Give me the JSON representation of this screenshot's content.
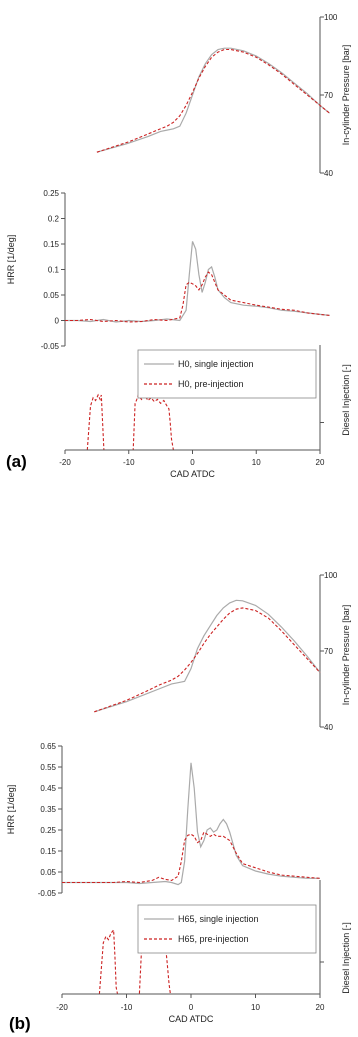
{
  "chart_data": [
    {
      "type": "line",
      "panel_label": "(a)",
      "xlabel": "CAD ATDC",
      "xlim": [
        -20,
        20
      ],
      "xticks": [
        "-20",
        "-10",
        "0",
        "10",
        "20"
      ],
      "pressure": {
        "ylabel": "In-cylinder Pressure [bar]",
        "ylim": [
          40,
          100
        ],
        "yticks": [
          "40",
          "70",
          "100"
        ],
        "series": [
          {
            "name": "H0, single injection",
            "color": "#aaaaaa",
            "dash": "solid",
            "x": [
              -15,
              -10,
              -7,
              -5,
              -4,
              -3,
              -2,
              -1,
              0,
              1,
              2,
              3,
              4,
              5,
              6,
              8,
              10,
              12,
              14,
              16,
              18,
              20,
              21.5
            ],
            "y": [
              48,
              51.5,
              54,
              56,
              56.5,
              57,
              58,
              63,
              70,
              77,
              82,
              85.5,
              87.5,
              88,
              88,
              87,
              85,
              82,
              78.5,
              74.5,
              70.5,
              66,
              63
            ]
          },
          {
            "name": "H0, pre-injection",
            "color": "#cc2222",
            "dash": "dashed",
            "x": [
              -15,
              -10,
              -7,
              -5,
              -4,
              -3,
              -2,
              -1,
              0,
              1,
              2,
              3,
              4,
              5,
              6,
              8,
              10,
              12,
              14,
              16,
              18,
              20,
              21.5
            ],
            "y": [
              48,
              52,
              55,
              57,
              58,
              59.5,
              62,
              66,
              71,
              76.5,
              81,
              84.5,
              86.5,
              87.5,
              87.5,
              86.5,
              84.5,
              81.5,
              78,
              74,
              70,
              66,
              63
            ]
          }
        ]
      },
      "hrr": {
        "ylabel": "HRR [1/deg]",
        "ylim": [
          -0.05,
          0.25
        ],
        "yticks": [
          "-0.05",
          "0",
          "0.05",
          "0.1",
          "0.15",
          "0.2",
          "0.25"
        ],
        "series": [
          {
            "name": "H0, single injection",
            "color": "#aaaaaa",
            "dash": "solid",
            "x": [
              -20,
              -18,
              -16,
              -14,
              -12,
              -10,
              -8,
              -6,
              -4,
              -2,
              -1,
              -0.5,
              0,
              0.5,
              1,
              1.5,
              2,
              2.5,
              3,
              3.5,
              4,
              5,
              6,
              8,
              10,
              12,
              14,
              16,
              18,
              20,
              21.5
            ],
            "y": [
              0,
              0,
              -0.002,
              0.002,
              -0.003,
              0,
              -0.002,
              0,
              0.003,
              0,
              0.02,
              0.09,
              0.155,
              0.14,
              0.09,
              0.055,
              0.075,
              0.1,
              0.105,
              0.085,
              0.06,
              0.045,
              0.035,
              0.03,
              0.028,
              0.025,
              0.02,
              0.018,
              0.015,
              0.012,
              0.01
            ]
          },
          {
            "name": "H0, pre-injection",
            "color": "#cc2222",
            "dash": "dashed",
            "x": [
              -20,
              -18,
              -16,
              -14,
              -12,
              -10,
              -8,
              -6,
              -4,
              -2,
              -1.5,
              -1,
              -0.5,
              0,
              0.5,
              1,
              1.5,
              2,
              2.5,
              3,
              3.5,
              4,
              5,
              6,
              8,
              10,
              12,
              14,
              16,
              18,
              20,
              21.5
            ],
            "y": [
              0,
              0,
              0.002,
              -0.002,
              0,
              -0.003,
              -0.002,
              0.002,
              0,
              0.005,
              0.03,
              0.07,
              0.075,
              0.072,
              0.068,
              0.06,
              0.07,
              0.085,
              0.095,
              0.09,
              0.075,
              0.06,
              0.05,
              0.04,
              0.035,
              0.03,
              0.026,
              0.022,
              0.02,
              0.015,
              0.012,
              0.01
            ]
          }
        ]
      },
      "injection": {
        "ylabel": "Diesel Injection [-]",
        "series": [
          {
            "name": "H0, pre-injection",
            "color": "#cc2222",
            "dash": "dashed",
            "x": [
              -16.5,
              -16,
              -15.6,
              -15.2,
              -14.8,
              -14.5,
              -14.3,
              -14.1,
              -13.9,
              -13.7,
              -9.3,
              -9.0,
              -8.8,
              -8.5,
              -8,
              -7.5,
              -7,
              -6.5,
              -6,
              -5.5,
              -5,
              -4.5,
              -4,
              -3.7,
              -3.5,
              -3.3,
              -3.0
            ],
            "y": [
              0,
              0.8,
              0.95,
              0.9,
              1,
              0.92,
              1,
              0.5,
              0,
              0,
              0,
              0.85,
              0.9,
              1,
              0.92,
              1,
              0.9,
              0.95,
              0.88,
              0.92,
              0.85,
              0.9,
              0.8,
              0.75,
              0.5,
              0.2,
              0
            ]
          }
        ]
      },
      "legend": {
        "placement": "right",
        "entries": [
          {
            "label": "H0, single injection",
            "color": "#aaaaaa",
            "dash": "solid"
          },
          {
            "label": "H0, pre-injection",
            "color": "#cc2222",
            "dash": "dashed"
          }
        ]
      }
    },
    {
      "type": "line",
      "panel_label": "(b)",
      "xlabel": "CAD ATDC",
      "xlim": [
        -20,
        20
      ],
      "xticks": [
        "-20",
        "-10",
        "0",
        "10",
        "20"
      ],
      "pressure": {
        "ylabel": "In-cylinder Pressure [bar]",
        "ylim": [
          40,
          100
        ],
        "yticks": [
          "40",
          "70",
          "100"
        ],
        "series": [
          {
            "name": "H65, single injection",
            "color": "#aaaaaa",
            "dash": "solid",
            "x": [
              -15,
              -10,
              -7,
              -5,
              -3,
              -2,
              -1,
              0,
              1,
              2,
              3,
              4,
              5,
              6,
              7,
              8,
              10,
              12,
              14,
              16,
              18,
              20
            ],
            "y": [
              46,
              50,
              53,
              55,
              57,
              57.5,
              58,
              63,
              71,
              76,
              80,
              84,
              87,
              89,
              90,
              89.8,
              88,
              84.5,
              79.5,
              74,
              68,
              61.5
            ]
          },
          {
            "name": "H65, pre-injection",
            "color": "#cc2222",
            "dash": "dashed",
            "x": [
              -15,
              -10,
              -7,
              -5,
              -3,
              -2,
              -1,
              0,
              1,
              2,
              3,
              4,
              5,
              6,
              7,
              8,
              10,
              12,
              14,
              16,
              18,
              20
            ],
            "y": [
              46,
              50.5,
              54,
              56.5,
              58.5,
              60,
              62.5,
              65.5,
              69,
              73,
              76.5,
              79.5,
              82.5,
              85,
              86.5,
              87,
              86,
              83,
              78,
              72.5,
              67,
              61.5
            ]
          }
        ]
      },
      "hrr": {
        "ylabel": "HRR [1/deg]",
        "ylim": [
          -0.05,
          0.65
        ],
        "yticks": [
          "-0.05",
          "0.05",
          "0.15",
          "0.25",
          "0.35",
          "0.45",
          "0.55",
          "0.65"
        ],
        "series": [
          {
            "name": "H65, single injection",
            "color": "#aaaaaa",
            "dash": "solid",
            "x": [
              -20,
              -15,
              -12,
              -10,
              -8,
              -6,
              -4,
              -3,
              -2,
              -1.5,
              -1,
              -0.5,
              0,
              0.5,
              1,
              1.5,
              2,
              2.5,
              3,
              3.5,
              4,
              4.5,
              5,
              5.5,
              6,
              7,
              8,
              10,
              12,
              14,
              16,
              18,
              20
            ],
            "y": [
              0,
              0,
              0,
              0,
              -0.005,
              0,
              0.005,
              0,
              -0.01,
              0,
              0.1,
              0.35,
              0.57,
              0.45,
              0.24,
              0.17,
              0.2,
              0.25,
              0.26,
              0.24,
              0.25,
              0.28,
              0.3,
              0.28,
              0.24,
              0.13,
              0.08,
              0.055,
              0.04,
              0.03,
              0.025,
              0.02,
              0.02
            ]
          },
          {
            "name": "H65, pre-injection",
            "color": "#cc2222",
            "dash": "dashed",
            "x": [
              -20,
              -15,
              -12,
              -10,
              -8,
              -6,
              -5,
              -4,
              -3,
              -2,
              -1.5,
              -1,
              -0.5,
              0,
              0.5,
              1,
              1.5,
              2,
              2.5,
              3,
              3.5,
              4,
              5,
              6,
              7,
              8,
              10,
              12,
              14,
              16,
              18,
              20
            ],
            "y": [
              0,
              0,
              0,
              0.005,
              0,
              0.01,
              0.025,
              0.015,
              0.01,
              0.03,
              0.1,
              0.2,
              0.225,
              0.23,
              0.22,
              0.19,
              0.2,
              0.24,
              0.23,
              0.22,
              0.23,
              0.22,
              0.22,
              0.2,
              0.14,
              0.09,
              0.07,
              0.05,
              0.035,
              0.03,
              0.025,
              0.02
            ]
          }
        ]
      },
      "injection": {
        "ylabel": "Diesel Injection [-]",
        "series": [
          {
            "name": "H65, pre-injection",
            "color": "#cc2222",
            "dash": "dashed",
            "x": [
              -14.2,
              -13.6,
              -13.2,
              -12.8,
              -12.4,
              -12.0,
              -11.8,
              -11.6,
              -11.4,
              -8,
              -7.6,
              -7.3,
              -7.0,
              -6.5,
              -6,
              -5.5,
              -5,
              -4.5,
              -4,
              -3.7,
              -3.4,
              -3.2
            ],
            "y": [
              0,
              0.8,
              0.9,
              0.85,
              0.95,
              1,
              0.6,
              0.1,
              0,
              0,
              0.85,
              0.95,
              1,
              0.92,
              0.98,
              0.9,
              0.95,
              0.88,
              0.8,
              0.5,
              0.15,
              0
            ]
          }
        ]
      },
      "legend": {
        "placement": "right",
        "entries": [
          {
            "label": "H65, single injection",
            "color": "#aaaaaa",
            "dash": "solid"
          },
          {
            "label": "H65, pre-injection",
            "color": "#cc2222",
            "dash": "dashed"
          }
        ]
      }
    }
  ]
}
